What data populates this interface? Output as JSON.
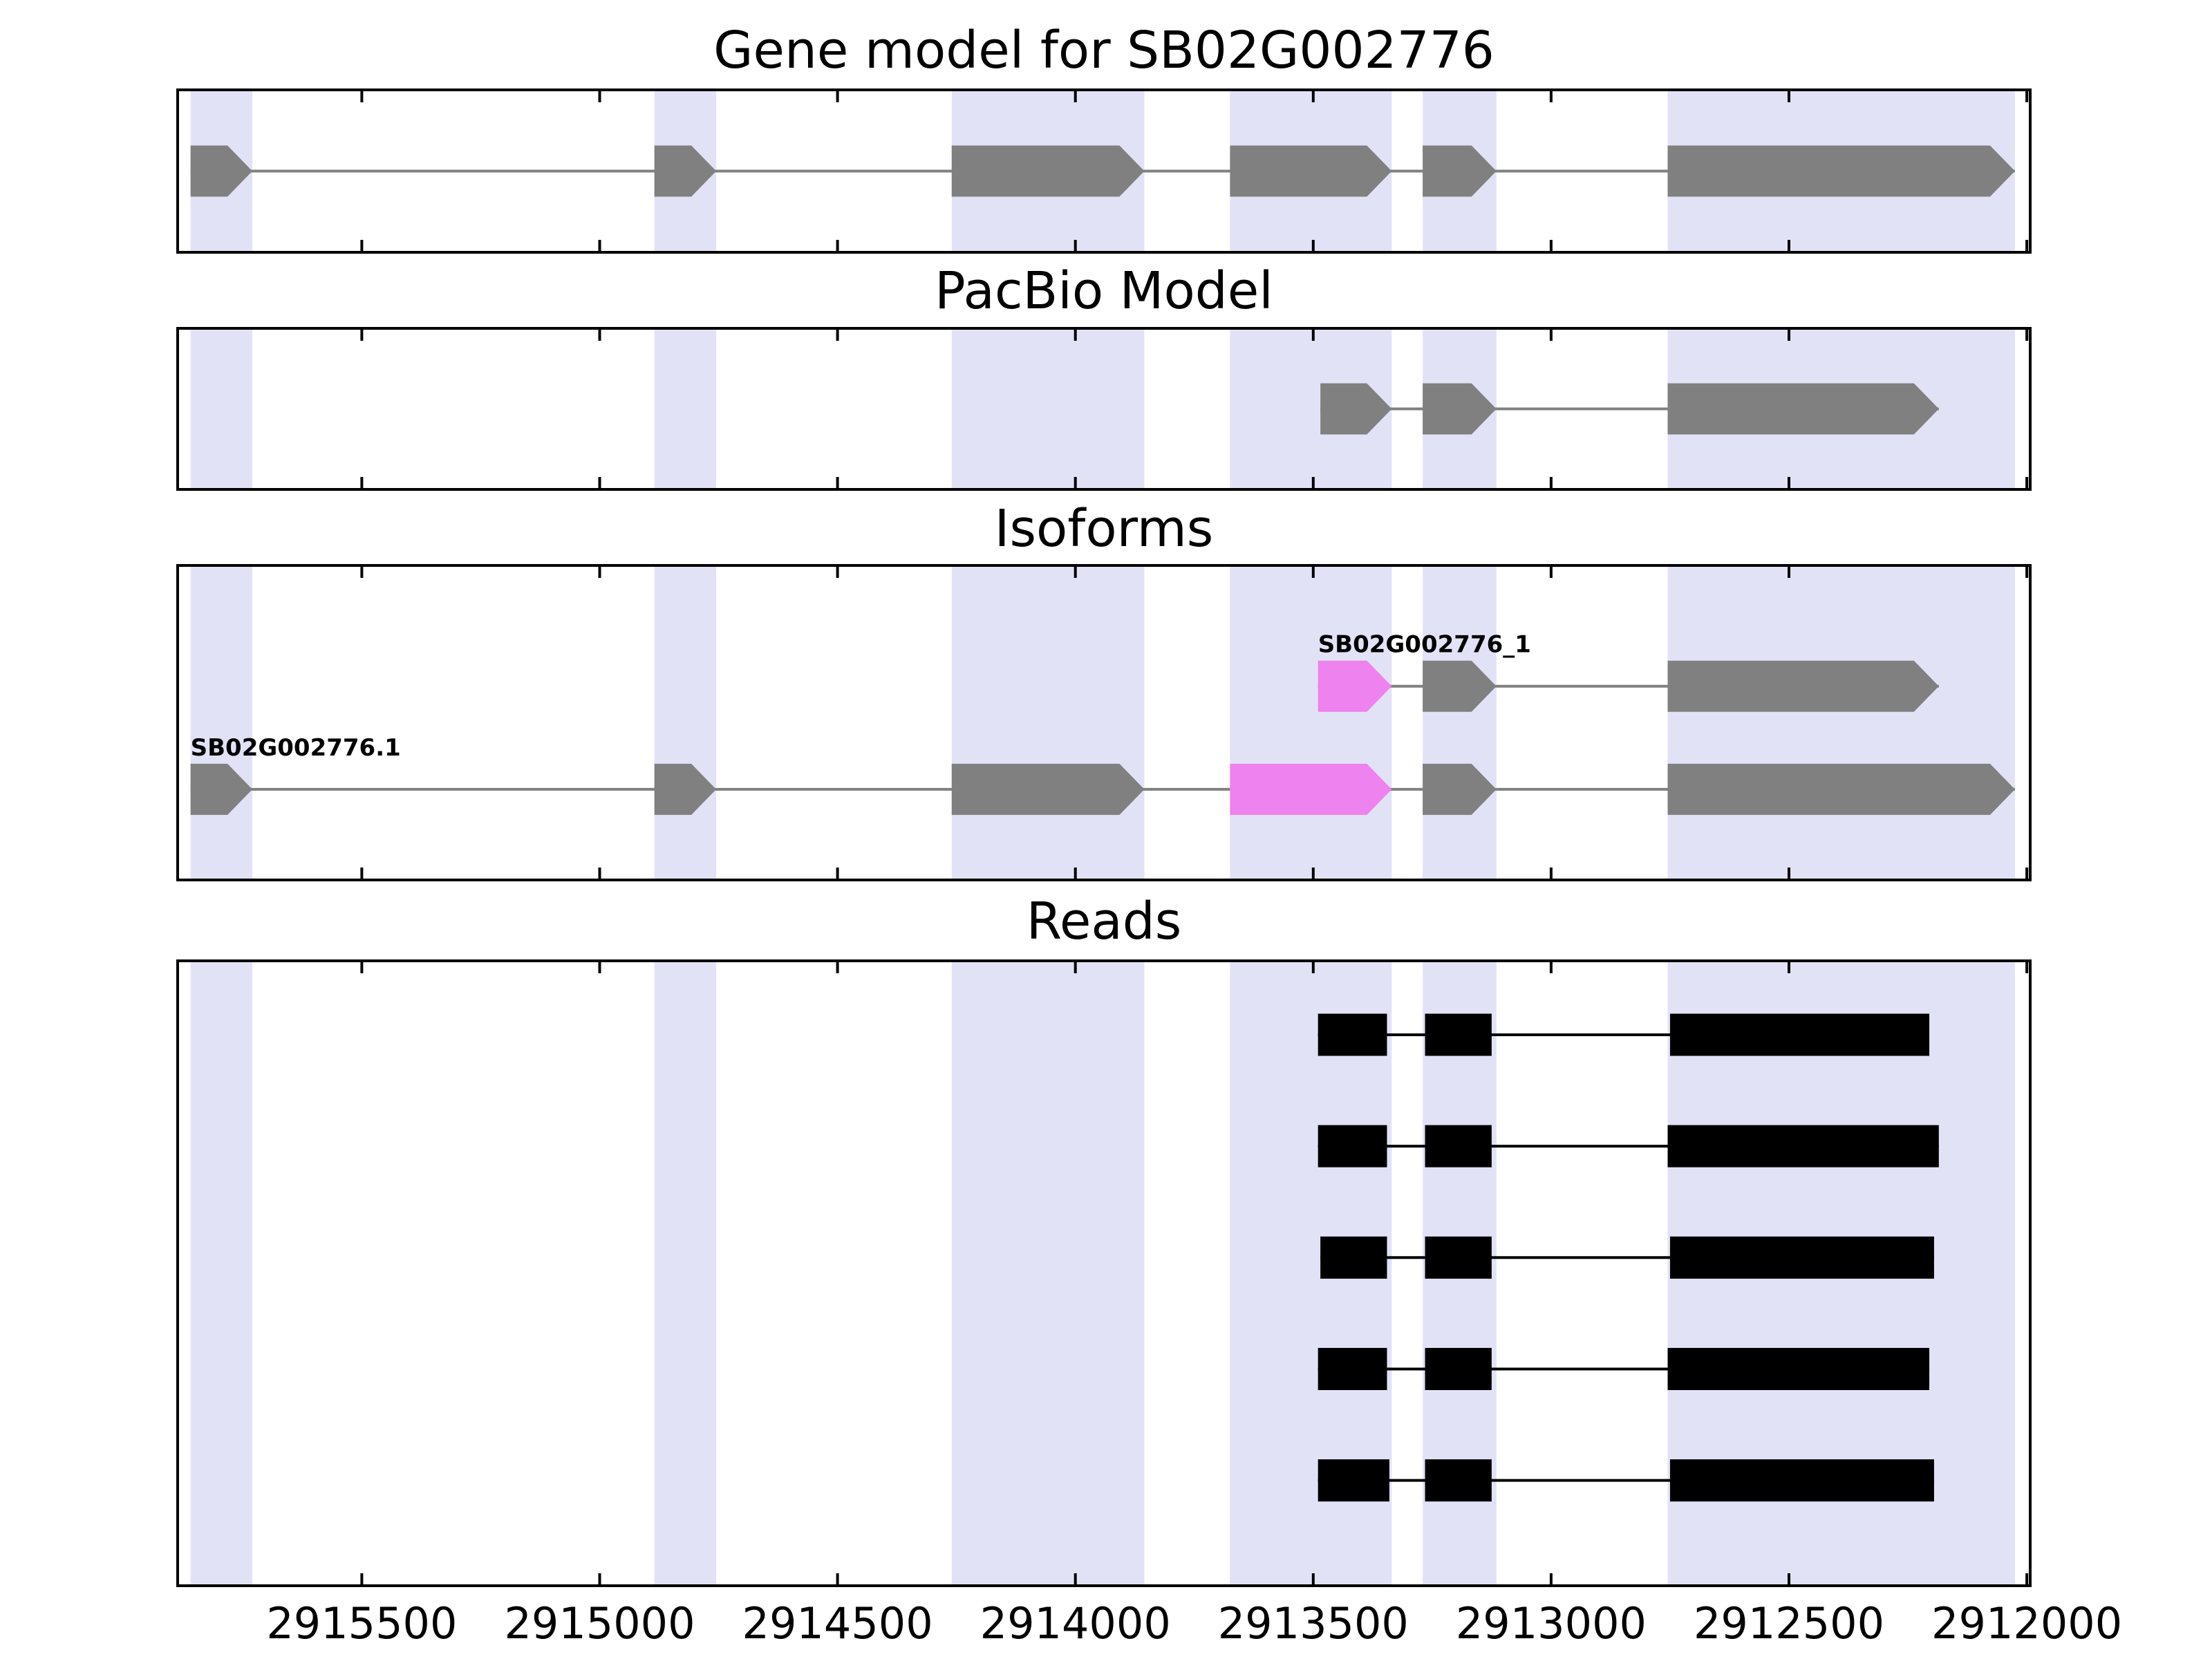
{
  "colors": {
    "gray": "#808080",
    "violet": "#EE82EE",
    "black": "#000000",
    "band": "#E2E2F7",
    "axis": "#000000"
  },
  "chart_data": {
    "type": "gene-model-tracks",
    "xlim": [
      2915890,
      2911990
    ],
    "x_ticks": [
      2915500,
      2915000,
      2914500,
      2914000,
      2913500,
      2913000,
      2912500,
      2912000
    ],
    "highlight_bands": [
      [
        2915860,
        2915730
      ],
      [
        2914885,
        2914755
      ],
      [
        2914260,
        2913855
      ],
      [
        2913675,
        2913335
      ],
      [
        2913270,
        2913115
      ],
      [
        2912755,
        2912025
      ]
    ],
    "panels": [
      {
        "title": "Gene model for SB02G002776",
        "tracks": [
          {
            "label": "",
            "color": "gray",
            "shape": "arrow",
            "row": 0.5,
            "height": 74,
            "exons": [
              [
                2915860,
                2915730
              ],
              [
                2914885,
                2914755
              ],
              [
                2914260,
                2913855
              ],
              [
                2913675,
                2913335
              ],
              [
                2913270,
                2913115
              ],
              [
                2912755,
                2912025
              ]
            ]
          }
        ]
      },
      {
        "title": "PacBio Model",
        "tracks": [
          {
            "label": "",
            "color": "gray",
            "shape": "arrow",
            "row": 0.5,
            "height": 74,
            "exons": [
              [
                2913485,
                2913335
              ],
              [
                2913270,
                2913115
              ],
              [
                2912755,
                2912185
              ]
            ]
          }
        ]
      },
      {
        "title": "Isoforms",
        "tracks": [
          {
            "label": "SB02G002776_1",
            "color": "gray",
            "shape": "arrow",
            "row": 0.385,
            "height": 74,
            "exons": [
              {
                "span": [
                  2913490,
                  2913335
                ],
                "color": "violet"
              },
              [
                2913270,
                2913115
              ],
              [
                2912755,
                2912185
              ]
            ]
          },
          {
            "label": "SB02G002776.1",
            "color": "gray",
            "shape": "arrow",
            "row": 0.71,
            "height": 74,
            "exons": [
              [
                2915860,
                2915730
              ],
              [
                2914885,
                2914755
              ],
              [
                2914260,
                2913855
              ],
              {
                "span": [
                  2913675,
                  2913335
                ],
                "color": "violet"
              },
              [
                2913270,
                2913115
              ],
              [
                2912755,
                2912025
              ]
            ]
          }
        ]
      },
      {
        "title": "Reads",
        "tracks": [
          {
            "label": "",
            "color": "black",
            "shape": "rect",
            "row": 0.12,
            "height": 61,
            "exons": [
              [
                2913490,
                2913345
              ],
              [
                2913265,
                2913125
              ],
              [
                2912750,
                2912205
              ]
            ]
          },
          {
            "label": "",
            "color": "black",
            "shape": "rect",
            "row": 0.2975,
            "height": 61,
            "exons": [
              [
                2913490,
                2913345
              ],
              [
                2913265,
                2913125
              ],
              [
                2912755,
                2912185
              ]
            ]
          },
          {
            "label": "",
            "color": "black",
            "shape": "rect",
            "row": 0.475,
            "height": 61,
            "exons": [
              [
                2913485,
                2913345
              ],
              [
                2913265,
                2913125
              ],
              [
                2912750,
                2912195
              ]
            ]
          },
          {
            "label": "",
            "color": "black",
            "shape": "rect",
            "row": 0.6525,
            "height": 61,
            "exons": [
              [
                2913490,
                2913345
              ],
              [
                2913265,
                2913125
              ],
              [
                2912755,
                2912205
              ]
            ]
          },
          {
            "label": "",
            "color": "black",
            "shape": "rect",
            "row": 0.83,
            "height": 61,
            "exons": [
              [
                2913490,
                2913340
              ],
              [
                2913265,
                2913125
              ],
              [
                2912750,
                2912195
              ]
            ]
          }
        ]
      }
    ]
  }
}
